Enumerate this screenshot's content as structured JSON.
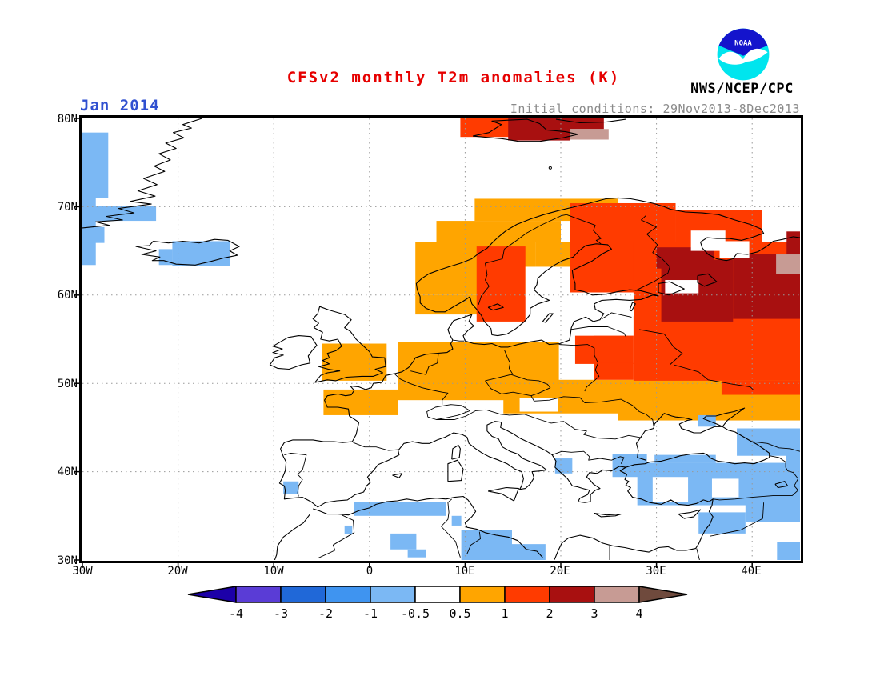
{
  "header": {
    "title": "CFSv2 monthly T2m anomalies (K)",
    "title_color": "#e60000",
    "agency": "NWS/NCEP/CPC",
    "logo_text": "NOAA",
    "logo_colors": {
      "disc": "#00e5ee",
      "sky": "#1414cc",
      "bird": "#ffffff"
    }
  },
  "subheader": {
    "date_label": "Jan 2014",
    "date_color": "#3050d0",
    "init_conditions": "Initial conditions: 29Nov2013-8Dec2013",
    "init_color": "#8a8a8a"
  },
  "map": {
    "lat_labels": [
      "80N",
      "70N",
      "60N",
      "50N",
      "40N",
      "30N"
    ],
    "lon_labels": [
      "30W",
      "20W",
      "10W",
      "0",
      "10E",
      "20E",
      "30E",
      "40E"
    ],
    "lat_ticks": [
      80,
      70,
      60,
      50,
      40,
      30
    ],
    "lon_ticks": [
      -30,
      -20,
      -10,
      0,
      10,
      20,
      30,
      40
    ],
    "grid_color": "#999999",
    "frame_color": "#000000"
  },
  "colorbar": {
    "labels": [
      "-4",
      "-3",
      "-2",
      "-1",
      "-0.5",
      "0.5",
      "1",
      "2",
      "3",
      "4"
    ],
    "segment_colors": [
      "#5a3cd6",
      "#2068d8",
      "#3f94f0",
      "#7bb8f4",
      "#ffffff",
      "#ffa500",
      "#ff3b00",
      "#a81010",
      "#c79b94"
    ],
    "arrow_left_color": "#1c00a8",
    "arrow_right_color": "#6f4a3d"
  },
  "chart_data": {
    "type": "filled_contour_map",
    "title": "CFSv2 monthly T2m anomalies (K)",
    "units": "K",
    "month": "Jan 2014",
    "initial_conditions": "29Nov2013-8Dec2013",
    "lon_range": [
      -30,
      45
    ],
    "lat_range": [
      30,
      80
    ],
    "levels": [
      -4,
      -3,
      -2,
      -1,
      -0.5,
      0.5,
      1,
      2,
      3,
      4
    ],
    "palette": {
      "-1..-0.5": "#7bb8f4",
      "-0.5..0.5": "#ffffff",
      "0.5..1": "#ffa500",
      "1..2": "#ff3b00",
      "2..3": "#a81010",
      "3..4": "#c79b94"
    },
    "regions": [
      {
        "v": "0.5..1",
        "lon": [
          -5,
          1.8
        ],
        "lat": [
          50.3,
          54.5
        ]
      },
      {
        "v": "0.5..1",
        "lon": [
          -4.8,
          3
        ],
        "lat": [
          46.4,
          49.3
        ]
      },
      {
        "v": "0.5..1",
        "lon": [
          3,
          19.8
        ],
        "lat": [
          48.1,
          54.7
        ]
      },
      {
        "v": "0.5..1",
        "lon": [
          14,
          26
        ],
        "lat": [
          46.6,
          50.4
        ]
      },
      {
        "v": "0.5..1",
        "lon": [
          26,
          45
        ],
        "lat": [
          45.8,
          50.4
        ]
      },
      {
        "v": "0.5..1",
        "lon": [
          4.8,
          13
        ],
        "lat": [
          57.8,
          60
        ]
      },
      {
        "v": "0.5..1",
        "lon": [
          4.8,
          17.4
        ],
        "lat": [
          60,
          66
        ]
      },
      {
        "v": "0.5..1",
        "lon": [
          7,
          20
        ],
        "lat": [
          66,
          68.4
        ]
      },
      {
        "v": "0.5..1",
        "lon": [
          11,
          26
        ],
        "lat": [
          68.4,
          70.9
        ]
      },
      {
        "v": "0.5..1",
        "lon": [
          17.4,
          21.5
        ],
        "lat": [
          63.2,
          66
        ]
      },
      {
        "v": "1..2",
        "lon": [
          9.5,
          16.5
        ],
        "lat": [
          77.9,
          80
        ]
      },
      {
        "v": "1..2",
        "lon": [
          11.2,
          16.3
        ],
        "lat": [
          57,
          65.5
        ]
      },
      {
        "v": "1..2",
        "lon": [
          21,
          32
        ],
        "lat": [
          60.3,
          70.4
        ]
      },
      {
        "v": "1..2",
        "lon": [
          32,
          41
        ],
        "lat": [
          66,
          69.6
        ]
      },
      {
        "v": "1..2",
        "lon": [
          27.6,
          45
        ],
        "lat": [
          50.3,
          66
        ]
      },
      {
        "v": "1..2",
        "lon": [
          21.5,
          27.6
        ],
        "lat": [
          52.2,
          55.4
        ]
      },
      {
        "v": "1..2",
        "lon": [
          23.5,
          27.6
        ],
        "lat": [
          50.4,
          52.3
        ]
      },
      {
        "v": "1..2",
        "lon": [
          36.8,
          45
        ],
        "lat": [
          48.7,
          50.3
        ]
      },
      {
        "v": "2..3",
        "lon": [
          14.5,
          21
        ],
        "lat": [
          77.5,
          80
        ]
      },
      {
        "v": "2..3",
        "lon": [
          21,
          24.5
        ],
        "lat": [
          78.8,
          80
        ]
      },
      {
        "v": "2..3",
        "lon": [
          30.5,
          38
        ],
        "lat": [
          57,
          64
        ]
      },
      {
        "v": "2..3",
        "lon": [
          38,
          45
        ],
        "lat": [
          57.3,
          64.6
        ]
      },
      {
        "v": "2..3",
        "lon": [
          30,
          36
        ],
        "lat": [
          63,
          65.4
        ]
      },
      {
        "v": "2..3",
        "lon": [
          43.6,
          45
        ],
        "lat": [
          64.6,
          67.2
        ]
      },
      {
        "v": "3..4",
        "lon": [
          21,
          25
        ],
        "lat": [
          77.6,
          78.8
        ]
      },
      {
        "v": "3..4",
        "lon": [
          42.5,
          45
        ],
        "lat": [
          62.4,
          64.6
        ]
      },
      {
        "v": "-0.5..0.5",
        "lon": [
          33.6,
          37.2
        ],
        "lat": [
          65,
          67.3
        ]
      },
      {
        "v": "-0.5..0.5",
        "lon": [
          36.6,
          39.7
        ],
        "lat": [
          64.2,
          66.1
        ]
      },
      {
        "v": "-0.5..0.5",
        "lon": [
          16.3,
          21
        ],
        "lat": [
          59.8,
          63.2
        ]
      },
      {
        "v": "-0.5..0.5",
        "lon": [
          16.5,
          23.5
        ],
        "lat": [
          55.4,
          59.8
        ]
      },
      {
        "v": "-0.5..0.5",
        "lon": [
          23.5,
          27.6
        ],
        "lat": [
          57.6,
          60.1
        ]
      },
      {
        "v": "-0.5..0.5",
        "lon": [
          30.9,
          34.4
        ],
        "lat": [
          60.2,
          61.7
        ]
      },
      {
        "v": "-0.5..0.5",
        "lon": [
          15.7,
          19.7
        ],
        "lat": [
          46.8,
          48.3
        ]
      },
      {
        "v": "-1..-0.5",
        "lon": [
          -30,
          -27.3
        ],
        "lat": [
          71,
          78.4
        ]
      },
      {
        "v": "-1..-0.5",
        "lon": [
          -30,
          -28.6
        ],
        "lat": [
          63.4,
          71
        ]
      },
      {
        "v": "-1..-0.5",
        "lon": [
          -30,
          -22.3
        ],
        "lat": [
          68.4,
          70.1
        ]
      },
      {
        "v": "-1..-0.5",
        "lon": [
          -30,
          -27.7
        ],
        "lat": [
          65.9,
          67.7
        ]
      },
      {
        "v": "-1..-0.5",
        "lon": [
          -20.6,
          -14.6
        ],
        "lat": [
          63.3,
          66.1
        ]
      },
      {
        "v": "-1..-0.5",
        "lon": [
          -22,
          -20.6
        ],
        "lat": [
          63.4,
          65.2
        ]
      },
      {
        "v": "-1..-0.5",
        "lon": [
          -9,
          -7.4
        ],
        "lat": [
          37.5,
          38.9
        ]
      },
      {
        "v": "-1..-0.5",
        "lon": [
          -1.6,
          8
        ],
        "lat": [
          35,
          36.6
        ]
      },
      {
        "v": "-1..-0.5",
        "lon": [
          -2.6,
          -1.8
        ],
        "lat": [
          32.9,
          33.9
        ]
      },
      {
        "v": "-1..-0.5",
        "lon": [
          8.6,
          9.6
        ],
        "lat": [
          33.9,
          35
        ]
      },
      {
        "v": "-1..-0.5",
        "lon": [
          2.2,
          4.9
        ],
        "lat": [
          31.2,
          33
        ]
      },
      {
        "v": "-1..-0.5",
        "lon": [
          4,
          5.9
        ],
        "lat": [
          30.3,
          31.2
        ]
      },
      {
        "v": "-1..-0.5",
        "lon": [
          9.6,
          14.9
        ],
        "lat": [
          30,
          33.4
        ]
      },
      {
        "v": "-1..-0.5",
        "lon": [
          14.9,
          18.4
        ],
        "lat": [
          30,
          31.8
        ]
      },
      {
        "v": "-1..-0.5",
        "lon": [
          19.4,
          21.2
        ],
        "lat": [
          39.8,
          41.5
        ]
      },
      {
        "v": "-1..-0.5",
        "lon": [
          25.4,
          29
        ],
        "lat": [
          39.4,
          42
        ]
      },
      {
        "v": "-1..-0.5",
        "lon": [
          28,
          45
        ],
        "lat": [
          36.2,
          41
        ]
      },
      {
        "v": "-1..-0.5",
        "lon": [
          29.8,
          36.2
        ],
        "lat": [
          41,
          41.9
        ]
      },
      {
        "v": "-1..-0.5",
        "lon": [
          38.4,
          45
        ],
        "lat": [
          41.8,
          44.9
        ]
      },
      {
        "v": "-1..-0.5",
        "lon": [
          34.3,
          36.2
        ],
        "lat": [
          45.1,
          46.4
        ]
      },
      {
        "v": "-1..-0.5",
        "lon": [
          34.4,
          39.3
        ],
        "lat": [
          33,
          35.4
        ]
      },
      {
        "v": "-1..-0.5",
        "lon": [
          39.3,
          45
        ],
        "lat": [
          34.3,
          37.2
        ]
      },
      {
        "v": "-1..-0.5",
        "lon": [
          42.6,
          45
        ],
        "lat": [
          30,
          32
        ]
      },
      {
        "v": "-1..-0.5",
        "lon": [
          43.5,
          45
        ],
        "lat": [
          40.5,
          42
        ]
      },
      {
        "v": "-0.5..0.5",
        "lon": [
          29.6,
          33.3
        ],
        "lat": [
          36.6,
          39.4
        ]
      },
      {
        "v": "-0.5..0.5",
        "lon": [
          35.8,
          38.6
        ],
        "lat": [
          37.1,
          39.2
        ]
      }
    ]
  }
}
